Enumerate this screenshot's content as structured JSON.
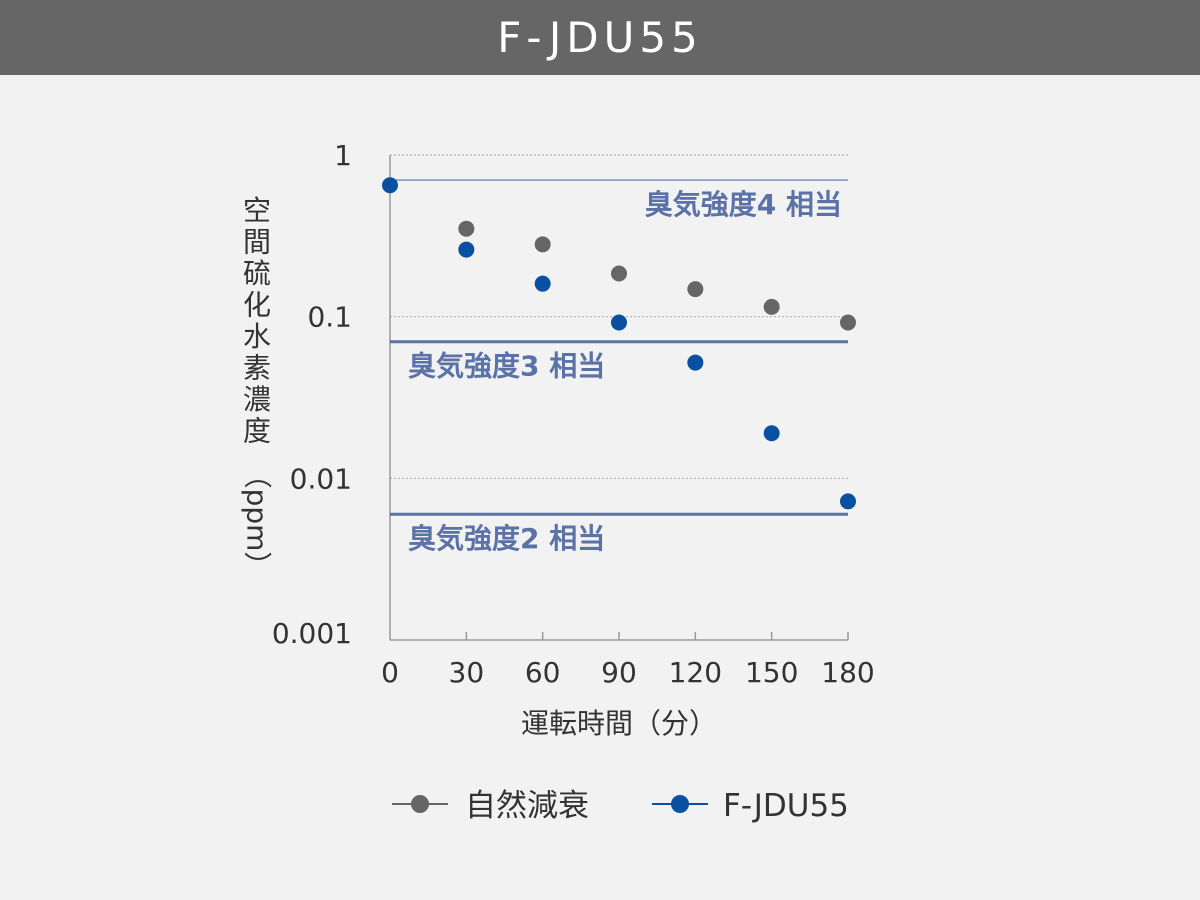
{
  "header": {
    "title": "F-JDU55"
  },
  "colors": {
    "natural": "#666666",
    "product": "#0a50a0",
    "reference_line": "#5a72a8",
    "reference_label": "#5a72a8",
    "grid": "#aaaaaa",
    "axis": "#999999"
  },
  "chart_data": {
    "type": "scatter",
    "title": "",
    "xlabel": "運転時間（分）",
    "ylabel_lines": [
      "空",
      "間",
      "硫",
      "化",
      "水",
      "素",
      "濃",
      "度",
      "（ppm）"
    ],
    "x_ticks": [
      0,
      30,
      60,
      90,
      120,
      150,
      180
    ],
    "x_tick_labels": [
      "0",
      "30",
      "60",
      "90",
      "120",
      "150",
      "180"
    ],
    "xlim": [
      0,
      180
    ],
    "y_scale": "log",
    "y_ticks": [
      0.001,
      0.01,
      0.1,
      1
    ],
    "y_tick_labels": [
      "0.001",
      "0.01",
      "0.1",
      "1"
    ],
    "ylim": [
      0.001,
      1
    ],
    "grid": "horizontal dotted",
    "legend_position": "bottom",
    "series": [
      {
        "name": "自然減衰",
        "key": "natural",
        "x": [
          30,
          60,
          90,
          120,
          150,
          180
        ],
        "y": [
          0.35,
          0.28,
          0.185,
          0.148,
          0.115,
          0.092
        ]
      },
      {
        "name": "F-JDU55",
        "key": "product",
        "x": [
          0,
          30,
          60,
          90,
          120,
          150,
          180
        ],
        "y": [
          0.65,
          0.26,
          0.16,
          0.092,
          0.052,
          0.019,
          0.0072
        ]
      }
    ],
    "reference_lines": [
      {
        "y": 0.7,
        "label": "臭気強度4 相当"
      },
      {
        "y": 0.07,
        "label": "臭気強度3 相当"
      },
      {
        "y": 0.006,
        "label": "臭気強度2 相当"
      }
    ]
  }
}
